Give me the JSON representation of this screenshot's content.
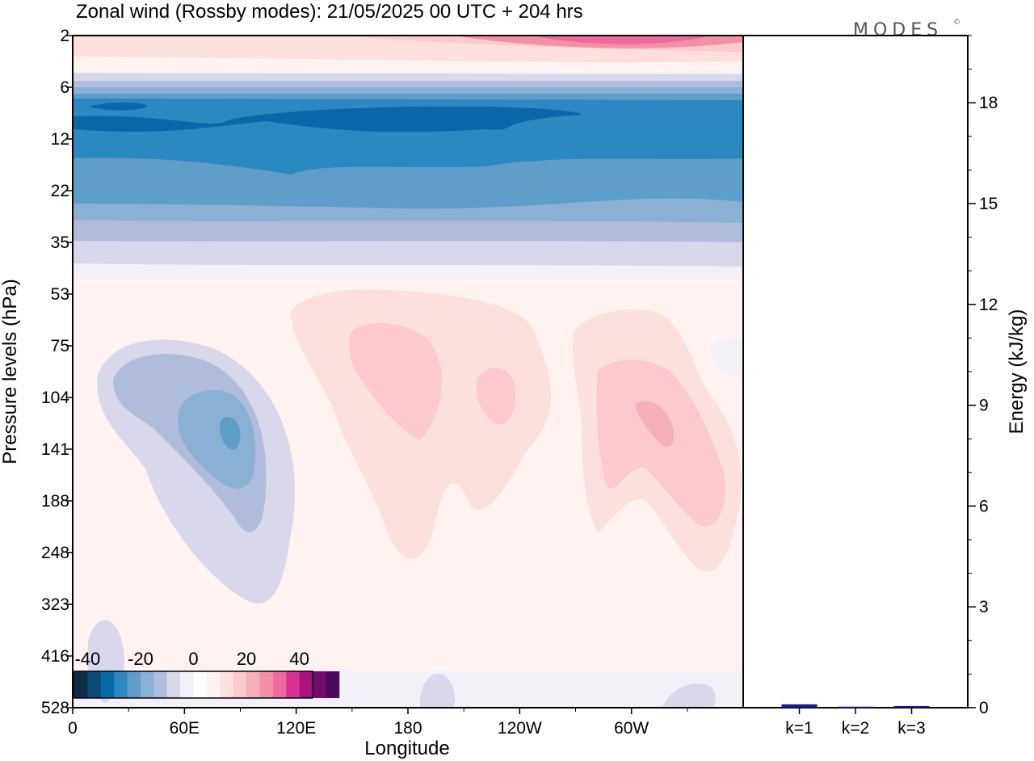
{
  "chart_data": [
    {
      "type": "heatmap",
      "title": "Zonal wind (Rossby modes):  21/05/2025  00 UTC  + 204 hrs",
      "xlabel": "Longitude",
      "ylabel": "Pressure levels (hPa)",
      "x_ticks": [
        "0",
        "60E",
        "120E",
        "180",
        "120W",
        "60W"
      ],
      "x_tick_degrees": [
        0,
        60,
        120,
        180,
        240,
        300
      ],
      "xlim": [
        0,
        360
      ],
      "y_ticks": [
        "2",
        "6",
        "12",
        "22",
        "35",
        "53",
        "75",
        "104",
        "141",
        "188",
        "248",
        "323",
        "416",
        "528"
      ],
      "y_scale": "model levels (top to bottom)",
      "colorbar": {
        "tick_labels": [
          "-40",
          "-20",
          "0",
          "20",
          "40"
        ],
        "tick_values": [
          -40,
          -20,
          0,
          20,
          40
        ],
        "range": [
          -45,
          45
        ],
        "bin_width": 5,
        "colors": [
          "#0b2e4a",
          "#0c4a78",
          "#0868a8",
          "#2c88c0",
          "#5e9ec8",
          "#8ab0d3",
          "#b0bcdc",
          "#d8d8ea",
          "#f3f1f7",
          "#ffffff",
          "#fff2f0",
          "#fde0de",
          "#fcc9cc",
          "#f8b0b8",
          "#f48fa9",
          "#ee6a9f",
          "#d83394",
          "#a8137e",
          "#730b6f",
          "#4a0a5e"
        ]
      },
      "features": [
        {
          "name": "easterly band",
          "longitude_range": [
            0,
            360
          ],
          "level_range": [
            "6",
            "22"
          ],
          "value": -20
        },
        {
          "name": "easterly core",
          "longitude_range": [
            0,
            270
          ],
          "level_range": [
            "6",
            "12"
          ],
          "value": -30
        },
        {
          "name": "westerly jet",
          "longitude_range": [
            210,
            360
          ],
          "level_range": [
            "2",
            "2"
          ],
          "value": 20
        },
        {
          "name": "easterly cell",
          "center_longitude": 85,
          "center_level": "141",
          "value": -15
        },
        {
          "name": "westerly cell",
          "center_longitude": 165,
          "center_level": "104",
          "value": 10
        },
        {
          "name": "westerly cell",
          "center_longitude": 225,
          "center_level": "104",
          "value": 10
        },
        {
          "name": "westerly cell",
          "center_longitude": 310,
          "center_level": "141",
          "value": 10
        }
      ]
    },
    {
      "type": "bar",
      "ylabel": "Energy (kJ/kg)",
      "categories": [
        "k=1",
        "k=2",
        "k=3"
      ],
      "values": [
        0.1,
        0.03,
        0.05
      ],
      "ylim": [
        0,
        20
      ],
      "y_ticks": [
        0,
        3,
        6,
        9,
        12,
        15,
        18
      ],
      "bar_color": "#1a1a8c"
    }
  ],
  "logo": {
    "text": "MODES",
    "mark": "©"
  }
}
